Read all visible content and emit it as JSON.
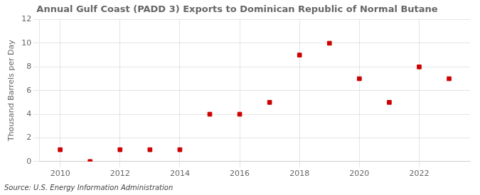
{
  "chart_data": {
    "type": "scatter",
    "title": "Annual Gulf Coast (PADD 3) Exports to Dominican Republic of Normal Butane",
    "ylabel": "Thousand Barrels per Day",
    "annotations": [
      "Source: U.S. Energy Information Administration"
    ],
    "x": [
      2010,
      2011,
      2012,
      2013,
      2014,
      2015,
      2016,
      2017,
      2018,
      2019,
      2020,
      2021,
      2022,
      2023
    ],
    "values": [
      1,
      0,
      1,
      1,
      1,
      4,
      4,
      5,
      9,
      10,
      7,
      5,
      8,
      7
    ],
    "color": "#cc0000",
    "marker": "square",
    "xlim": [
      2009.3,
      2023.7
    ],
    "xticks": [
      2010,
      2012,
      2014,
      2016,
      2018,
      2020,
      2022
    ],
    "ylim": [
      0,
      12
    ],
    "yticks": [
      0,
      2,
      4,
      6,
      8,
      10,
      12
    ],
    "grid": true
  }
}
